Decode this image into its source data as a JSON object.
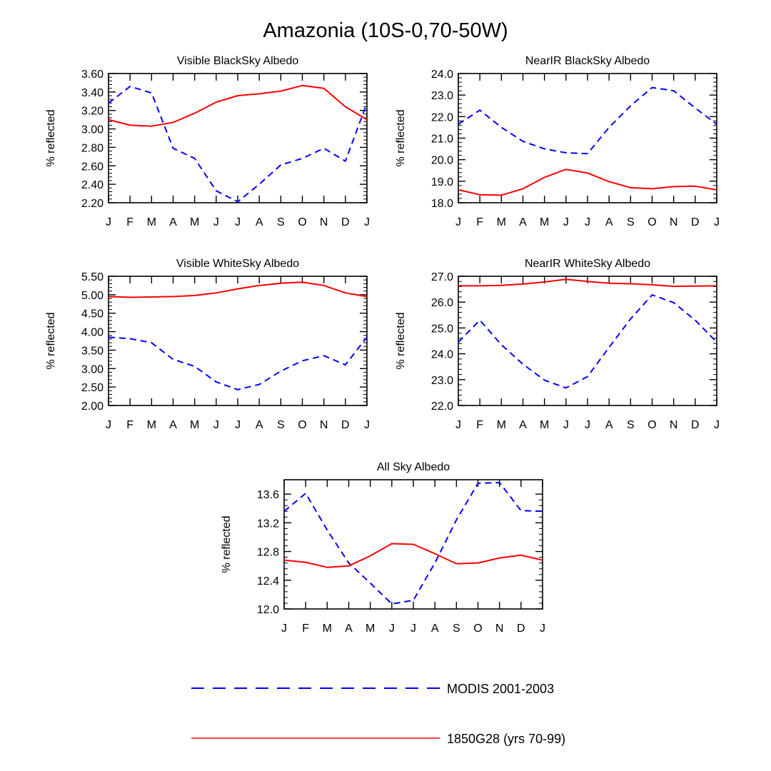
{
  "title": "Amazonia (10S-0,70-50W)",
  "colors": {
    "modis": "#0000ff",
    "model": "#ff0000",
    "axis": "#000000"
  },
  "legend": [
    {
      "series": "modis",
      "label": "MODIS 2001-2003",
      "style": "dashed"
    },
    {
      "series": "model",
      "label": "1850G28 (yrs 70-99)",
      "style": "solid"
    }
  ],
  "chart_data": [
    {
      "type": "line",
      "title": "Visible BlackSky Albedo",
      "ylabel": "% reflected",
      "xlabel": "",
      "categories": [
        "J",
        "F",
        "M",
        "A",
        "M",
        "J",
        "J",
        "A",
        "S",
        "O",
        "N",
        "D",
        "J"
      ],
      "ylim": [
        2.2,
        3.6
      ],
      "yticks": [
        2.2,
        2.4,
        2.6,
        2.8,
        3.0,
        3.2,
        3.4,
        3.6
      ],
      "ytick_labels": [
        "2.20",
        "2.40",
        "2.60",
        "2.80",
        "3.00",
        "3.20",
        "3.40",
        "3.60"
      ],
      "series": [
        {
          "name": "MODIS 2001-2003",
          "key": "modis",
          "values": [
            3.28,
            3.46,
            3.39,
            2.79,
            2.68,
            2.33,
            2.21,
            2.4,
            2.61,
            2.68,
            2.79,
            2.65,
            3.28
          ]
        },
        {
          "name": "1850G28 (yrs 70-99)",
          "key": "model",
          "values": [
            3.1,
            3.04,
            3.03,
            3.07,
            3.17,
            3.29,
            3.36,
            3.38,
            3.41,
            3.47,
            3.44,
            3.24,
            3.1
          ]
        }
      ]
    },
    {
      "type": "line",
      "title": "NearIR BlackSky Albedo",
      "ylabel": "% reflected",
      "xlabel": "",
      "categories": [
        "J",
        "F",
        "M",
        "A",
        "M",
        "J",
        "J",
        "A",
        "S",
        "O",
        "N",
        "D",
        "J"
      ],
      "ylim": [
        18.0,
        24.0
      ],
      "yticks": [
        18,
        19,
        20,
        21,
        22,
        23,
        24
      ],
      "ytick_labels": [
        "18.0",
        "19.0",
        "20.0",
        "21.0",
        "22.0",
        "23.0",
        "24.0"
      ],
      "series": [
        {
          "name": "MODIS 2001-2003",
          "key": "modis",
          "values": [
            21.65,
            22.3,
            21.5,
            20.85,
            20.5,
            20.32,
            20.28,
            21.5,
            22.5,
            23.35,
            23.2,
            22.4,
            21.65
          ]
        },
        {
          "name": "1850G28 (yrs 70-99)",
          "key": "model",
          "values": [
            18.6,
            18.37,
            18.35,
            18.65,
            19.18,
            19.55,
            19.38,
            18.98,
            18.7,
            18.65,
            18.75,
            18.77,
            18.6
          ]
        }
      ]
    },
    {
      "type": "line",
      "title": "Visible WhiteSky Albedo",
      "ylabel": "% reflected",
      "xlabel": "",
      "categories": [
        "J",
        "F",
        "M",
        "A",
        "M",
        "J",
        "J",
        "A",
        "S",
        "O",
        "N",
        "D",
        "J"
      ],
      "ylim": [
        2.0,
        5.5
      ],
      "yticks": [
        2.0,
        2.5,
        3.0,
        3.5,
        4.0,
        4.5,
        5.0,
        5.5
      ],
      "ytick_labels": [
        "2.00",
        "2.50",
        "3.00",
        "3.50",
        "4.00",
        "4.50",
        "5.00",
        "5.50"
      ],
      "series": [
        {
          "name": "MODIS 2001-2003",
          "key": "modis",
          "values": [
            3.85,
            3.81,
            3.7,
            3.25,
            3.06,
            2.64,
            2.43,
            2.57,
            2.93,
            3.21,
            3.35,
            3.1,
            3.85
          ]
        },
        {
          "name": "1850G28 (yrs 70-99)",
          "key": "model",
          "values": [
            4.95,
            4.93,
            4.94,
            4.95,
            4.98,
            5.05,
            5.16,
            5.25,
            5.31,
            5.34,
            5.25,
            5.05,
            4.95
          ]
        }
      ]
    },
    {
      "type": "line",
      "title": "NearIR WhiteSky Albedo",
      "ylabel": "% reflected",
      "xlabel": "",
      "categories": [
        "J",
        "F",
        "M",
        "A",
        "M",
        "J",
        "J",
        "A",
        "S",
        "O",
        "N",
        "D",
        "J"
      ],
      "ylim": [
        22.0,
        27.0
      ],
      "yticks": [
        22,
        23,
        24,
        25,
        26,
        27
      ],
      "ytick_labels": [
        "22.0",
        "23.0",
        "24.0",
        "25.0",
        "26.0",
        "27.0"
      ],
      "series": [
        {
          "name": "MODIS 2001-2003",
          "key": "modis",
          "values": [
            24.45,
            25.3,
            24.35,
            23.6,
            22.98,
            22.68,
            23.12,
            24.25,
            25.35,
            26.28,
            25.98,
            25.3,
            24.45
          ]
        },
        {
          "name": "1850G28 (yrs 70-99)",
          "key": "model",
          "values": [
            26.63,
            26.63,
            26.65,
            26.7,
            26.78,
            26.88,
            26.8,
            26.73,
            26.71,
            26.67,
            26.61,
            26.62,
            26.63
          ]
        }
      ]
    },
    {
      "type": "line",
      "title": "All Sky Albedo",
      "ylabel": "% reflected",
      "xlabel": "",
      "categories": [
        "J",
        "F",
        "M",
        "A",
        "M",
        "J",
        "J",
        "A",
        "S",
        "O",
        "N",
        "D",
        "J"
      ],
      "ylim": [
        12.0,
        13.8
      ],
      "yticks": [
        12.0,
        12.4,
        12.8,
        13.2,
        13.6
      ],
      "ytick_labels": [
        "12.0",
        "12.4",
        "12.8",
        "13.2",
        "13.6"
      ],
      "series": [
        {
          "name": "MODIS 2001-2003",
          "key": "modis",
          "values": [
            13.36,
            13.61,
            13.1,
            12.64,
            12.36,
            12.07,
            12.12,
            12.64,
            13.24,
            13.75,
            13.76,
            13.37,
            13.36
          ]
        },
        {
          "name": "1850G28 (yrs 70-99)",
          "key": "model",
          "values": [
            12.68,
            12.65,
            12.58,
            12.6,
            12.74,
            12.91,
            12.9,
            12.77,
            12.63,
            12.64,
            12.71,
            12.75,
            12.68
          ]
        }
      ]
    }
  ]
}
